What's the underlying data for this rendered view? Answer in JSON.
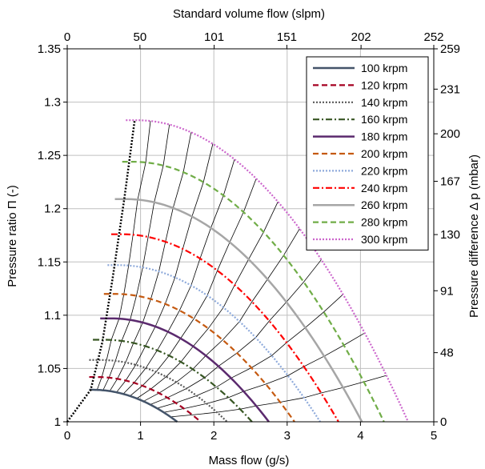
{
  "chart_data": {
    "type": "line",
    "xlabel": "Mass flow (g/s)",
    "ylabel": "Pressure ratio Π (-)",
    "x2label": "Standard volume flow (slpm)",
    "y2label": "Pressure difference Δ p (mbar)",
    "xlim": [
      0,
      5
    ],
    "ylim": [
      1,
      1.35
    ],
    "grid": true,
    "legend_position": "top-right",
    "x_ticks": [
      "0",
      "1",
      "2",
      "3",
      "4",
      "5"
    ],
    "y_ticks": [
      "1",
      "1.05",
      "1.1",
      "1.15",
      "1.2",
      "1.25",
      "1.3",
      "1.35"
    ],
    "x2_ticks": [
      {
        "value": 0,
        "label": "0"
      },
      {
        "value": 50,
        "label": "50"
      },
      {
        "value": 101,
        "label": "101"
      },
      {
        "value": 151,
        "label": "151"
      },
      {
        "value": 202,
        "label": "202"
      },
      {
        "value": 252,
        "label": "252"
      }
    ],
    "y2_ticks": [
      {
        "value": 0,
        "label": "0"
      },
      {
        "value": 48,
        "label": "48"
      },
      {
        "value": 91,
        "label": "91"
      },
      {
        "value": 130,
        "label": "130"
      },
      {
        "value": 167,
        "label": "167"
      },
      {
        "value": 200,
        "label": "200"
      },
      {
        "value": 231,
        "label": "231"
      },
      {
        "value": 259,
        "label": "259"
      }
    ],
    "x2_per_x": 50.4,
    "surge_line": {
      "x": [
        0.0,
        0.32,
        0.48,
        0.62,
        0.78,
        0.92
      ],
      "y": [
        1.0,
        1.03,
        1.075,
        1.135,
        1.21,
        1.283
      ]
    },
    "series": [
      {
        "name": "100 krpm",
        "color": "#44546a",
        "dash": "solid",
        "width": 2.5,
        "peak_x": 0.35,
        "peak_y": 1.03,
        "choke_x": 1.5
      },
      {
        "name": "120 krpm",
        "color": "#a50021",
        "dash": "7,4",
        "width": 2.2,
        "peak_x": 0.4,
        "peak_y": 1.042,
        "choke_x": 1.82
      },
      {
        "name": "140 krpm",
        "color": "#595959",
        "dash": "2,2",
        "width": 2.2,
        "peak_x": 0.45,
        "peak_y": 1.058,
        "choke_x": 2.18
      },
      {
        "name": "160 krpm",
        "color": "#375623",
        "dash": "8,3,2,3",
        "width": 2.2,
        "peak_x": 0.5,
        "peak_y": 1.077,
        "choke_x": 2.52
      },
      {
        "name": "180 krpm",
        "color": "#5b2a6e",
        "dash": "solid",
        "width": 2.5,
        "peak_x": 0.6,
        "peak_y": 1.097,
        "choke_x": 2.75
      },
      {
        "name": "200 krpm",
        "color": "#c55a11",
        "dash": "7,4",
        "width": 2.2,
        "peak_x": 0.65,
        "peak_y": 1.12,
        "choke_x": 3.1
      },
      {
        "name": "220 krpm",
        "color": "#8eaadb",
        "dash": "2,2",
        "width": 2.2,
        "peak_x": 0.7,
        "peak_y": 1.147,
        "choke_x": 3.45
      },
      {
        "name": "240 krpm",
        "color": "#ff0000",
        "dash": "8,3,2,3",
        "width": 2.2,
        "peak_x": 0.75,
        "peak_y": 1.176,
        "choke_x": 3.7
      },
      {
        "name": "260 krpm",
        "color": "#a6a6a6",
        "dash": "solid",
        "width": 2.5,
        "peak_x": 0.8,
        "peak_y": 1.209,
        "choke_x": 4.02
      },
      {
        "name": "280 krpm",
        "color": "#70ad47",
        "dash": "7,4",
        "width": 2.2,
        "peak_x": 0.9,
        "peak_y": 1.244,
        "choke_x": 4.32
      },
      {
        "name": "300 krpm",
        "color": "#cc66cc",
        "dash": "2,2",
        "width": 2.2,
        "peak_x": 0.95,
        "peak_y": 1.283,
        "choke_x": 4.65
      }
    ]
  }
}
